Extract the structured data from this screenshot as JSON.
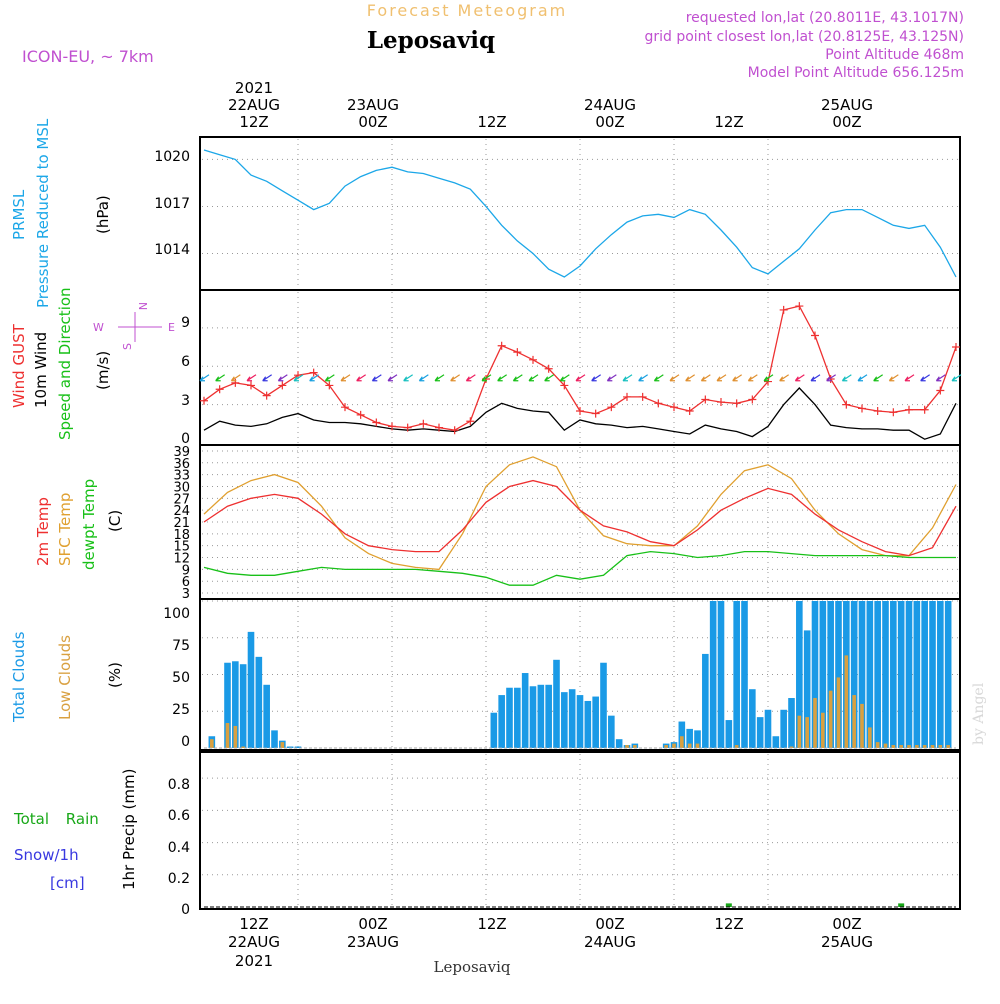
{
  "header": {
    "banner": "Forecast Meteogram",
    "location": "Leposaviq",
    "model": "ICON-EU, ~ 7km",
    "requested": "requested lon,lat (20.8011E, 43.1017N)",
    "grid_point": "grid point closest lon,lat (20.8125E, 43.125N)",
    "point_alt": "Point Altitude 468m",
    "model_alt": "Model Point Altitude 656.125m",
    "footer": "Leposaviq",
    "watermark": "by Angel"
  },
  "time_axis": {
    "year": "2021",
    "ticks": [
      {
        "hour": "12Z",
        "date": "22AUG",
        "year": "2021"
      },
      {
        "hour": "00Z",
        "date": "23AUG",
        "year": ""
      },
      {
        "hour": "12Z",
        "date": "",
        "year": ""
      },
      {
        "hour": "00Z",
        "date": "24AUG",
        "year": ""
      },
      {
        "hour": "12Z",
        "date": "",
        "year": ""
      },
      {
        "hour": "00Z",
        "date": "25AUG",
        "year": ""
      }
    ],
    "tick_hours": [
      12,
      24,
      36,
      48,
      60,
      72
    ]
  },
  "colors": {
    "pressure": "#1ca7e8",
    "gust": "#ee3030",
    "wind": "#000000",
    "temp2m": "#ee3030",
    "sfc": "#e0a030",
    "dewpt": "#18c018",
    "total_clouds": "#1a9ae6",
    "low_clouds": "#d9a040",
    "rain": "#18a818",
    "snow": "#3838e0",
    "compass": "#c050d0"
  },
  "panels": {
    "pressure": {
      "label1": "PRMSL",
      "label2": "Pressure Reduced to MSL",
      "unit": "(hPa)",
      "ticks": [
        "1014",
        "1017",
        "1020"
      ]
    },
    "wind": {
      "label1": "Wind GUST",
      "label2": "10m Wind",
      "label3": "Speed and Direction",
      "unit": "(m/s)",
      "ticks": [
        "0",
        "3",
        "6",
        "9"
      ],
      "compass": {
        "n": "N",
        "s": "S",
        "w": "W",
        "e": "E"
      }
    },
    "temp": {
      "label1": "2m Temp",
      "label2": "SFC Temp",
      "label3": "dewpt Temp",
      "unit": "(C)",
      "ticks": [
        "3",
        "6",
        "9",
        "12",
        "15",
        "18",
        "21",
        "24",
        "27",
        "30",
        "33",
        "36",
        "39"
      ]
    },
    "clouds": {
      "label1": "Total Clouds",
      "label2": "Low Clouds",
      "unit": "(%)",
      "ticks": [
        "0",
        "25",
        "50",
        "75",
        "100"
      ]
    },
    "precip": {
      "label1": "Total Rain",
      "label2": "Snow/1h",
      "label3": "[cm]",
      "unit": "1hr Precip (mm)",
      "ticks": [
        "0",
        "0.2",
        "0.4",
        "0.6",
        "0.8"
      ]
    }
  },
  "chart_data": [
    {
      "type": "line",
      "name": "pressure",
      "x": [
        0,
        2,
        4,
        6,
        8,
        10,
        12,
        14,
        16,
        18,
        20,
        22,
        24,
        26,
        28,
        30,
        32,
        34,
        36,
        38,
        40,
        42,
        44,
        46,
        48,
        50,
        52,
        54,
        56,
        58,
        60,
        62,
        64,
        66,
        68,
        70,
        72,
        74,
        76,
        78,
        80,
        82,
        84,
        86,
        88,
        90,
        92,
        94,
        96
      ],
      "values": [
        1020.6,
        1020.3,
        1020.0,
        1019.0,
        1018.6,
        1018.0,
        1017.4,
        1016.8,
        1017.2,
        1018.3,
        1018.9,
        1019.3,
        1019.5,
        1019.2,
        1019.1,
        1018.8,
        1018.5,
        1018.1,
        1017.0,
        1015.8,
        1014.8,
        1014.0,
        1013.0,
        1012.5,
        1013.2,
        1014.3,
        1015.2,
        1016.0,
        1016.4,
        1016.5,
        1016.3,
        1016.8,
        1016.5,
        1015.5,
        1014.4,
        1013.1,
        1012.7,
        1013.5,
        1014.3,
        1015.5,
        1016.6,
        1016.8,
        1016.8,
        1016.3,
        1015.8,
        1015.6,
        1015.8,
        1014.4,
        1012.5
      ],
      "ylim": [
        1011.8,
        1021.3
      ]
    },
    {
      "type": "line",
      "name": "wind_gust",
      "x": [
        0,
        2,
        4,
        6,
        8,
        10,
        12,
        14,
        16,
        18,
        20,
        22,
        24,
        26,
        28,
        30,
        32,
        34,
        36,
        38,
        40,
        42,
        44,
        46,
        48,
        50,
        52,
        54,
        56,
        58,
        60,
        62,
        64,
        66,
        68,
        70,
        72,
        74,
        76,
        78,
        80,
        82,
        84,
        86,
        88,
        90,
        92,
        94,
        96
      ],
      "values": [
        3.3,
        4.2,
        4.7,
        4.5,
        3.7,
        4.5,
        5.3,
        5.5,
        4.5,
        2.8,
        2.2,
        1.6,
        1.3,
        1.2,
        1.5,
        1.2,
        1.0,
        1.7,
        5.0,
        7.6,
        7.1,
        6.5,
        5.8,
        4.5,
        2.5,
        2.3,
        2.8,
        3.6,
        3.6,
        3.1,
        2.8,
        2.5,
        3.4,
        3.2,
        3.1,
        3.4,
        4.8,
        10.4,
        10.7,
        8.4,
        5.0,
        3.0,
        2.7,
        2.5,
        2.4,
        2.6,
        2.6,
        4.1,
        7.5
      ],
      "ylim": [
        0,
        11.8
      ]
    },
    {
      "type": "line",
      "name": "wind_10m",
      "x": [
        0,
        2,
        4,
        6,
        8,
        10,
        12,
        14,
        16,
        18,
        20,
        22,
        24,
        26,
        28,
        30,
        32,
        34,
        36,
        38,
        40,
        42,
        44,
        46,
        48,
        50,
        52,
        54,
        56,
        58,
        60,
        62,
        64,
        66,
        68,
        70,
        72,
        74,
        76,
        78,
        80,
        82,
        84,
        86,
        88,
        90,
        92,
        94,
        96
      ],
      "values": [
        1.0,
        1.7,
        1.4,
        1.3,
        1.5,
        2.0,
        2.3,
        1.8,
        1.6,
        1.6,
        1.5,
        1.3,
        1.1,
        1.0,
        1.1,
        1.0,
        0.9,
        1.3,
        2.4,
        3.1,
        2.7,
        2.5,
        2.4,
        1.0,
        1.8,
        1.5,
        1.4,
        1.2,
        1.3,
        1.1,
        0.9,
        0.7,
        1.4,
        1.1,
        0.9,
        0.5,
        1.3,
        3.0,
        4.3,
        3.0,
        1.4,
        1.2,
        1.1,
        1.1,
        1.0,
        1.0,
        0.3,
        0.7,
        3.1
      ],
      "ylim": [
        0,
        11.8
      ]
    },
    {
      "type": "line",
      "name": "temp_2m",
      "x": [
        0,
        3,
        6,
        9,
        12,
        15,
        18,
        21,
        24,
        27,
        30,
        33,
        36,
        39,
        42,
        45,
        48,
        51,
        54,
        57,
        60,
        63,
        66,
        69,
        72,
        75,
        78,
        81,
        84,
        87,
        90,
        93,
        96
      ],
      "values": [
        21,
        25,
        27,
        28,
        27,
        23,
        18,
        15,
        14,
        13.5,
        13.5,
        19,
        26,
        30,
        31.5,
        30,
        24,
        20,
        18.5,
        16,
        15,
        19,
        24,
        27,
        29.5,
        28,
        23,
        19,
        16,
        13.5,
        12.5,
        14.5,
        25
      ],
      "ylim": [
        2,
        40
      ]
    },
    {
      "type": "line",
      "name": "sfc_temp",
      "x": [
        0,
        3,
        6,
        9,
        12,
        15,
        18,
        21,
        24,
        27,
        30,
        33,
        36,
        39,
        42,
        45,
        48,
        51,
        54,
        57,
        60,
        63,
        66,
        69,
        72,
        75,
        78,
        81,
        84,
        87,
        90,
        93,
        96
      ],
      "values": [
        23,
        28.5,
        31.5,
        33,
        31,
        25,
        17,
        13,
        10.5,
        9.5,
        9,
        18,
        30,
        35.5,
        37.5,
        35,
        24,
        17.5,
        15.5,
        15,
        15,
        20,
        28,
        34,
        35.5,
        32,
        24,
        18,
        14,
        12.5,
        12.5,
        19.5,
        30.5
      ],
      "ylim": [
        2,
        40
      ]
    },
    {
      "type": "line",
      "name": "dewpt_temp",
      "x": [
        0,
        3,
        6,
        9,
        12,
        15,
        18,
        21,
        24,
        27,
        30,
        33,
        36,
        39,
        42,
        45,
        48,
        51,
        54,
        57,
        60,
        63,
        66,
        69,
        72,
        75,
        78,
        81,
        84,
        87,
        90,
        93,
        96
      ],
      "values": [
        9.5,
        8,
        7.5,
        7.5,
        8.5,
        9.5,
        9,
        9,
        9,
        9,
        8.5,
        8,
        7,
        5,
        5,
        7.5,
        6.5,
        7.5,
        12.5,
        13.5,
        13,
        12,
        12.5,
        13.5,
        13.5,
        13,
        12.5,
        12.5,
        12.5,
        12.5,
        12,
        12,
        12
      ],
      "ylim": [
        2,
        40
      ]
    },
    {
      "type": "bar",
      "name": "total_clouds",
      "x": [
        1,
        3,
        4,
        5,
        6,
        7,
        8,
        9,
        10,
        11,
        12,
        37,
        38,
        39,
        40,
        41,
        42,
        43,
        44,
        45,
        46,
        47,
        48,
        49,
        50,
        51,
        52,
        53,
        54,
        55,
        59,
        60,
        61,
        62,
        63,
        64,
        65,
        66,
        67,
        68,
        69,
        70,
        71,
        72,
        73,
        74,
        75,
        76,
        77,
        78,
        79,
        80,
        81,
        82,
        83,
        84,
        85,
        86,
        87,
        88,
        89,
        90,
        91,
        92,
        93,
        94,
        95
      ],
      "values": [
        8,
        58,
        59,
        57,
        79,
        62,
        43,
        12,
        5,
        1,
        1,
        24,
        36,
        41,
        41,
        51,
        42,
        43,
        43,
        60,
        38,
        40,
        36,
        32,
        35,
        58,
        22,
        6,
        2,
        3,
        3,
        4,
        18,
        13,
        12,
        64,
        100,
        100,
        19,
        100,
        100,
        40,
        21,
        26,
        8,
        26,
        34,
        100,
        80,
        100,
        100,
        100,
        100,
        100,
        100,
        100,
        100,
        100,
        100,
        100,
        100,
        100,
        100,
        100,
        100,
        100,
        100
      ],
      "ylim": [
        0,
        100
      ]
    },
    {
      "type": "bar",
      "name": "low_clouds",
      "x": [
        1,
        3,
        4,
        5,
        6,
        7,
        8,
        9,
        10,
        11,
        12,
        37,
        38,
        39,
        40,
        41,
        42,
        43,
        44,
        45,
        46,
        47,
        48,
        49,
        50,
        51,
        52,
        53,
        54,
        55,
        59,
        60,
        61,
        62,
        63,
        64,
        65,
        66,
        67,
        68,
        69,
        70,
        71,
        72,
        73,
        74,
        75,
        76,
        77,
        78,
        79,
        80,
        81,
        82,
        83,
        84,
        85,
        86,
        87,
        88,
        89,
        90,
        91,
        92,
        93,
        94,
        95
      ],
      "values": [
        6,
        17,
        15,
        1,
        0,
        0,
        0,
        0,
        4,
        0,
        0,
        0,
        0,
        0,
        0,
        0,
        0,
        0,
        0,
        0,
        0,
        0,
        0,
        0,
        0,
        0,
        0,
        0,
        2,
        2,
        2,
        3,
        8,
        3,
        3,
        0,
        0,
        0,
        0,
        2,
        0,
        0,
        0,
        0,
        0,
        0,
        1,
        22,
        21,
        34,
        24,
        39,
        48,
        63,
        36,
        30,
        14,
        4,
        3,
        2,
        2,
        2,
        2,
        2,
        2,
        2,
        2
      ],
      "ylim": [
        0,
        100
      ]
    },
    {
      "type": "bar",
      "name": "rain",
      "x": [
        67,
        89
      ],
      "values": [
        0.01,
        0.01
      ],
      "ylim": [
        0,
        0.95
      ]
    }
  ]
}
